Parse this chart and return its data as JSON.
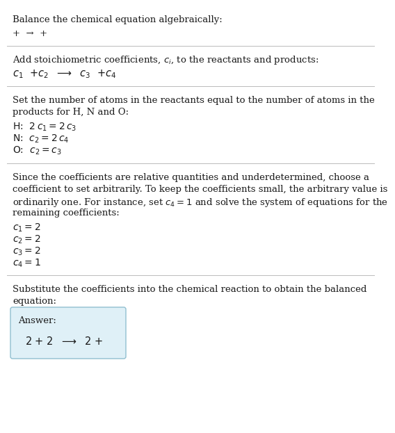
{
  "title": "Balance the chemical equation algebraically:",
  "line1": "+  →  +",
  "section1_header": "Add stoichiometric coefficients, $c_i$, to the reactants and products:",
  "section1_eq_parts": [
    "$c_1$",
    " +",
    "$c_2$",
    "  ⟶  ",
    "$c_3$",
    " +",
    "$c_4$"
  ],
  "section2_header_line1": "Set the number of atoms in the reactants equal to the number of atoms in the",
  "section2_header_line2": "products for H, N and O:",
  "section2_lines": [
    [
      "H:  ",
      "$2\\,c_1 = 2\\,c_3$"
    ],
    [
      "N:  ",
      "$c_2 = 2\\,c_4$"
    ],
    [
      "O:  ",
      "$c_2 = c_3$"
    ]
  ],
  "section3_header_line1": "Since the coefficients are relative quantities and underdetermined, choose a",
  "section3_header_line2": "coefficient to set arbitrarily. To keep the coefficients small, the arbitrary value is",
  "section3_header_line3": "ordinarily one. For instance, set $c_4 = 1$ and solve the system of equations for the",
  "section3_header_line4": "remaining coefficients:",
  "section3_lines": [
    "$c_1 = 2$",
    "$c_2 = 2$",
    "$c_3 = 2$",
    "$c_4 = 1$"
  ],
  "section4_header_line1": "Substitute the coefficients into the chemical reaction to obtain the balanced",
  "section4_header_line2": "equation:",
  "answer_label": "Answer:",
  "answer_eq": "2 + 2  ⟶  2 +",
  "bg_color": "#ffffff",
  "answer_box_facecolor": "#dff0f7",
  "answer_box_edgecolor": "#90bfd0",
  "text_color": "#1a1a1a",
  "separator_color": "#bbbbbb",
  "font_size": 9.5,
  "font_size_eq": 10.5
}
